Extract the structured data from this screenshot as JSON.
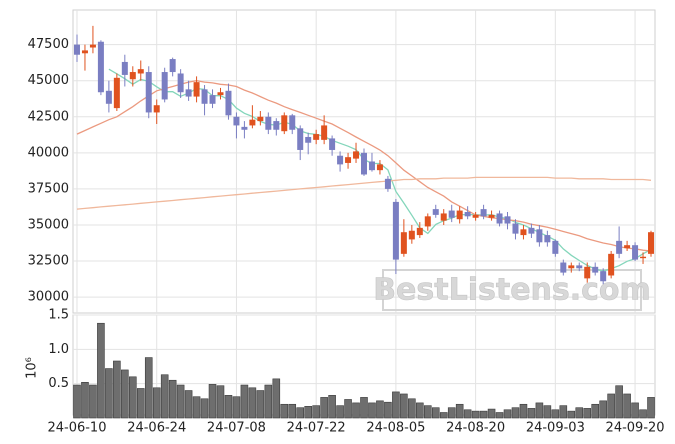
{
  "chart_data": [
    {
      "type": "candlestick",
      "open": [
        47500,
        46900,
        47300,
        47700,
        44300,
        43100,
        46300,
        45100,
        45500,
        45600,
        42800,
        45600,
        46500,
        45500,
        44400,
        43900,
        44400,
        44000,
        44000,
        44300,
        42500,
        41800,
        41900,
        42200,
        42500,
        42200,
        41500,
        42600,
        41700,
        41100,
        40900,
        40900,
        41000,
        39800,
        39300,
        39600,
        40000,
        39400,
        38800,
        38200,
        36600,
        33000,
        34000,
        34300,
        34900,
        36100,
        35300,
        36000,
        35400,
        35900,
        35500,
        36100,
        35500,
        35800,
        35600,
        35100,
        34300,
        34800,
        34700,
        34300,
        33900,
        32400,
        32000,
        32200,
        31300,
        32100,
        31800,
        31500,
        33900,
        33400,
        33600,
        32700,
        33000
      ],
      "high": [
        48200,
        47500,
        48800,
        47800,
        45000,
        45500,
        46800,
        46000,
        46400,
        46000,
        43700,
        45900,
        46600,
        45800,
        45000,
        45300,
        44700,
        44400,
        44500,
        44800,
        42800,
        42200,
        43300,
        42900,
        42800,
        42400,
        42800,
        42700,
        41900,
        41400,
        41600,
        42600,
        41200,
        40100,
        40000,
        40700,
        40300,
        40000,
        39500,
        38400,
        36800,
        35400,
        35000,
        35200,
        35800,
        36400,
        36100,
        36400,
        36300,
        36300,
        35900,
        36400,
        36000,
        36000,
        35900,
        35400,
        35000,
        35100,
        35000,
        34600,
        34000,
        32600,
        32400,
        32400,
        32400,
        32400,
        32000,
        33200,
        34900,
        33900,
        33800,
        33100,
        34600
      ],
      "low": [
        46300,
        45700,
        46900,
        44000,
        42800,
        42900,
        44600,
        44600,
        45000,
        42400,
        42000,
        43500,
        45300,
        43800,
        43600,
        43500,
        42600,
        43100,
        43700,
        42300,
        41000,
        41000,
        41700,
        41900,
        41300,
        41200,
        41300,
        41300,
        39500,
        39900,
        40600,
        40600,
        39800,
        38700,
        38900,
        39300,
        38400,
        38700,
        38500,
        37300,
        31600,
        32800,
        33700,
        34100,
        34600,
        35500,
        35000,
        35200,
        35100,
        35400,
        35300,
        35400,
        35300,
        34900,
        34700,
        34000,
        34000,
        34100,
        33500,
        33500,
        32800,
        31500,
        31700,
        31800,
        31000,
        31500,
        30900,
        31300,
        32700,
        33200,
        32500,
        32300,
        32800
      ],
      "close": [
        46800,
        47100,
        47500,
        44200,
        43400,
        45200,
        45400,
        45600,
        45800,
        42800,
        43300,
        43700,
        45600,
        44200,
        43900,
        44900,
        43400,
        43400,
        44200,
        42600,
        41900,
        41600,
        42300,
        42500,
        41600,
        41600,
        42600,
        41600,
        40200,
        40700,
        41300,
        41900,
        40200,
        39200,
        39700,
        40100,
        38500,
        38800,
        39200,
        37500,
        32600,
        34500,
        34600,
        34800,
        35600,
        35700,
        35800,
        35500,
        36000,
        35600,
        35700,
        35600,
        35700,
        35100,
        35100,
        34400,
        34700,
        34400,
        33800,
        33800,
        33000,
        31700,
        32200,
        32000,
        32100,
        31700,
        31100,
        33000,
        33000,
        33600,
        32600,
        32800,
        34500
      ],
      "up_color": "#e0521f",
      "down_color": "#7a7ec2",
      "lines": [
        {
          "color": "#84d6bb",
          "values": [
            null,
            null,
            null,
            null,
            45800,
            45480,
            45140,
            44760,
            45080,
            44960,
            44580,
            44240,
            44240,
            43920,
            44140,
            44460,
            44400,
            43960,
            43960,
            43700,
            43100,
            42740,
            42520,
            42180,
            41980,
            41920,
            42120,
            41980,
            41520,
            41340,
            41280,
            41140,
            40860,
            40660,
            40460,
            40220,
            39540,
            39260,
            39260,
            38820,
            37320,
            36520,
            35680,
            34800,
            34420,
            35040,
            35300,
            35480,
            35720,
            35720,
            35720,
            35680,
            35720,
            35540,
            35440,
            35180,
            35000,
            34740,
            34480,
            34220,
            33940,
            33340,
            32900,
            32540,
            32200,
            31940,
            31820,
            31980,
            32180,
            32480,
            32660,
            33000,
            33300
          ]
        },
        {
          "color": "#eb9a80",
          "values": [
            41300,
            41550,
            41800,
            42050,
            42300,
            42500,
            42850,
            43200,
            43600,
            43950,
            44300,
            44450,
            44600,
            44750,
            44900,
            45000,
            44900,
            44850,
            44750,
            44700,
            44600,
            44350,
            44150,
            43900,
            43650,
            43450,
            43200,
            43000,
            42800,
            42600,
            42400,
            42200,
            42000,
            41700,
            41400,
            41100,
            40800,
            40500,
            40200,
            39800,
            39300,
            38800,
            38400,
            38000,
            37600,
            37300,
            37000,
            36600,
            36300,
            36000,
            35700,
            35600,
            35500,
            35450,
            35350,
            35300,
            35200,
            35050,
            34950,
            34850,
            34700,
            34550,
            34400,
            34250,
            34050,
            33900,
            33750,
            33650,
            33500,
            33400,
            33350,
            33250,
            33200
          ]
        },
        {
          "color": "#f0b89c",
          "values": [
            36100,
            36150,
            36200,
            36250,
            36300,
            36350,
            36400,
            36450,
            36500,
            36550,
            36600,
            36650,
            36700,
            36750,
            36800,
            36850,
            36900,
            36950,
            37000,
            37050,
            37100,
            37150,
            37200,
            37250,
            37300,
            37350,
            37400,
            37450,
            37500,
            37550,
            37600,
            37650,
            37700,
            37750,
            37800,
            37850,
            37900,
            37950,
            38000,
            38050,
            38100,
            38150,
            38150,
            38200,
            38200,
            38200,
            38250,
            38250,
            38250,
            38250,
            38300,
            38300,
            38300,
            38300,
            38300,
            38300,
            38300,
            38300,
            38300,
            38300,
            38250,
            38250,
            38250,
            38200,
            38200,
            38200,
            38200,
            38150,
            38150,
            38150,
            38150,
            38150,
            38100
          ]
        }
      ],
      "ylim": [
        28900,
        49900
      ],
      "yticks": [
        30000,
        32500,
        35000,
        37500,
        40000,
        42500,
        45000,
        47500
      ],
      "grid": true,
      "watermark": "BestListens.com"
    },
    {
      "type": "bar",
      "categories": [
        "24-06-10",
        null,
        null,
        null,
        null,
        null,
        null,
        null,
        null,
        null,
        "24-06-24",
        null,
        null,
        null,
        null,
        null,
        null,
        null,
        null,
        null,
        "24-07-08",
        null,
        null,
        null,
        null,
        null,
        null,
        null,
        null,
        null,
        "24-07-22",
        null,
        null,
        null,
        null,
        null,
        null,
        null,
        null,
        null,
        "24-08-05",
        null,
        null,
        null,
        null,
        null,
        null,
        null,
        null,
        null,
        "24-08-20",
        null,
        null,
        null,
        null,
        null,
        null,
        null,
        null,
        null,
        "24-09-03",
        null,
        null,
        null,
        null,
        null,
        null,
        null,
        null,
        null,
        "24-09-20",
        null,
        null
      ],
      "values": [
        0.48,
        0.52,
        0.48,
        1.38,
        0.72,
        0.83,
        0.7,
        0.6,
        0.43,
        0.88,
        0.44,
        0.63,
        0.55,
        0.48,
        0.4,
        0.31,
        0.28,
        0.49,
        0.47,
        0.33,
        0.31,
        0.48,
        0.44,
        0.4,
        0.48,
        0.57,
        0.2,
        0.2,
        0.15,
        0.17,
        0.18,
        0.3,
        0.33,
        0.18,
        0.27,
        0.22,
        0.3,
        0.22,
        0.25,
        0.23,
        0.38,
        0.35,
        0.28,
        0.22,
        0.18,
        0.15,
        0.08,
        0.15,
        0.2,
        0.12,
        0.1,
        0.1,
        0.13,
        0.08,
        0.12,
        0.15,
        0.2,
        0.14,
        0.22,
        0.18,
        0.12,
        0.18,
        0.1,
        0.15,
        0.14,
        0.2,
        0.25,
        0.35,
        0.47,
        0.35,
        0.22,
        0.12,
        0.3
      ],
      "color": "#6e6e6e",
      "ylabel": "10⁶",
      "ylim": [
        0,
        1.5
      ],
      "yticks": [
        0.5,
        {
          "value": 1,
          "label": "1.0"
        },
        1.5
      ],
      "grid": true
    }
  ]
}
